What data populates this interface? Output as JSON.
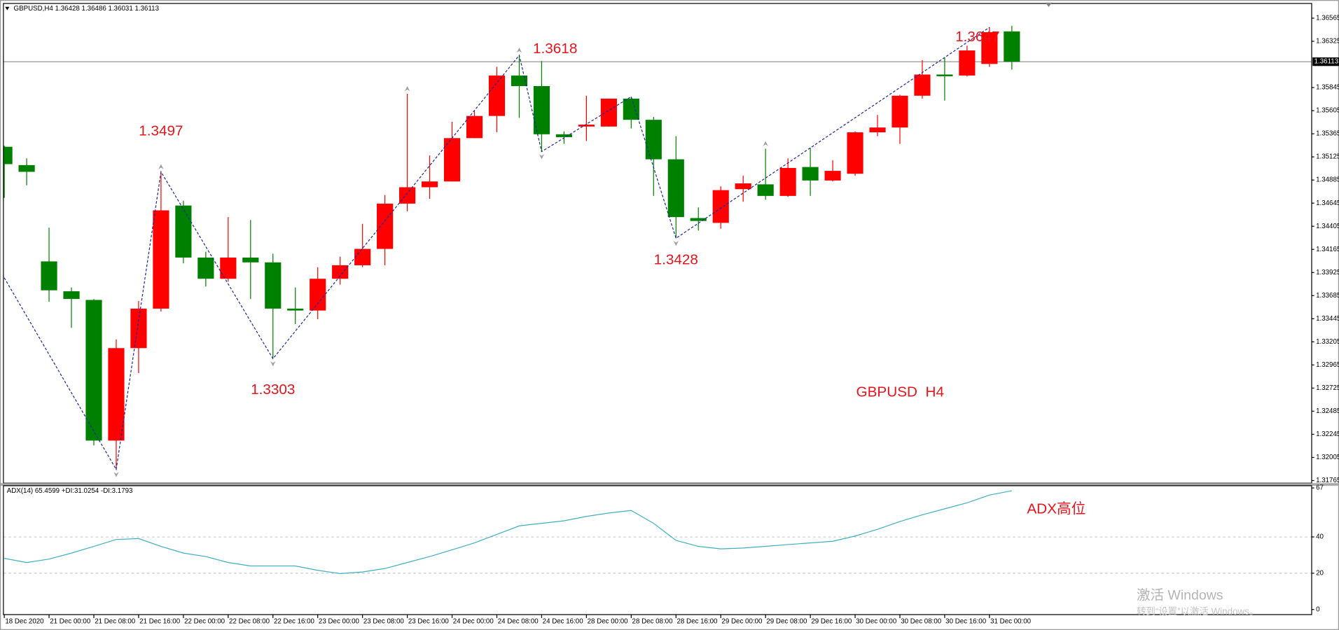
{
  "chart_data": [
    {
      "type": "candlestick",
      "symbol": "GBPUSD,H4",
      "categories": [
        "18 Dec 2020",
        null,
        "21 Dec 00:00",
        null,
        "21 Dec 08:00",
        null,
        "21 Dec 16:00",
        null,
        "22 Dec 00:00",
        null,
        "22 Dec 08:00",
        null,
        "22 Dec 16:00",
        null,
        "23 Dec 00:00",
        null,
        "23 Dec 08:00",
        null,
        "23 Dec 16:00",
        null,
        "24 Dec 00:00",
        null,
        "24 Dec 08:00",
        null,
        "24 Dec 16:00",
        null,
        "28 Dec 00:00",
        null,
        "28 Dec 08:00",
        null,
        "28 Dec 16:00",
        null,
        "29 Dec 00:00",
        null,
        "29 Dec 08:00",
        null,
        "29 Dec 16:00",
        null,
        "30 Dec 00:00",
        null,
        "30 Dec 08:00",
        null,
        "30 Dec 16:00",
        null,
        "31 Dec 00:00",
        null
      ],
      "open": [
        1.3523,
        1.3504,
        1.3404,
        1.3373,
        1.3364,
        1.3218,
        1.3314,
        1.3355,
        1.3462,
        1.3408,
        1.3386,
        1.3408,
        1.3403,
        1.3355,
        1.3353,
        1.3386,
        1.34,
        1.3417,
        1.3464,
        1.3481,
        1.3487,
        1.3532,
        1.3555,
        1.3597,
        1.3586,
        1.3536,
        1.3544,
        1.3544,
        1.3573,
        1.3551,
        1.351,
        1.3449,
        1.3444,
        1.3479,
        1.3484,
        1.3472,
        1.3502,
        1.3488,
        1.3495,
        1.3538,
        1.3543,
        1.3576,
        1.3598,
        1.3597,
        1.3609,
        1.36428
      ],
      "high": [
        1.3524,
        1.3511,
        1.3439,
        1.3377,
        1.3365,
        1.3323,
        1.3363,
        1.3497,
        1.3467,
        1.3414,
        1.345,
        1.3447,
        1.3412,
        1.3377,
        1.3398,
        1.3409,
        1.3443,
        1.3473,
        1.3578,
        1.3514,
        1.3549,
        1.356,
        1.3606,
        1.3618,
        1.3612,
        1.3539,
        1.3576,
        1.3573,
        1.3575,
        1.3554,
        1.3534,
        1.346,
        1.3482,
        1.3493,
        1.3521,
        1.3511,
        1.3522,
        1.3509,
        1.3539,
        1.3556,
        1.3577,
        1.3613,
        1.3616,
        1.3628,
        1.3647,
        1.36486
      ],
      "low": [
        1.347,
        1.3483,
        1.3362,
        1.3335,
        1.3213,
        1.3188,
        1.3288,
        1.3352,
        1.3402,
        1.3378,
        1.3383,
        1.3365,
        1.3303,
        1.3339,
        1.3344,
        1.338,
        1.3398,
        1.34,
        1.3456,
        1.3469,
        1.3487,
        1.3532,
        1.3538,
        1.3553,
        1.3518,
        1.3526,
        1.3529,
        1.3544,
        1.3542,
        1.3472,
        1.3428,
        1.3436,
        1.3438,
        1.3466,
        1.3468,
        1.3471,
        1.3472,
        1.3487,
        1.3493,
        1.3534,
        1.3526,
        1.3573,
        1.3571,
        1.3596,
        1.3606,
        1.36031
      ],
      "close": [
        1.3505,
        1.3497,
        1.3374,
        1.3365,
        1.3218,
        1.3314,
        1.3355,
        1.3457,
        1.3408,
        1.3386,
        1.3408,
        1.3403,
        1.3355,
        1.3353,
        1.3386,
        1.34,
        1.3417,
        1.3464,
        1.3481,
        1.3487,
        1.3532,
        1.3555,
        1.3597,
        1.3586,
        1.3536,
        1.3533,
        1.3546,
        1.3573,
        1.3551,
        1.351,
        1.345,
        1.3446,
        1.3478,
        1.3485,
        1.3472,
        1.3501,
        1.3488,
        1.3498,
        1.3538,
        1.3543,
        1.3576,
        1.3598,
        1.3597,
        1.3623,
        1.3642,
        1.36113
      ],
      "up_color": "#ff0000",
      "down_color": "#008000",
      "ylim": [
        1.31738,
        1.36718
      ],
      "yticks": [
        1.31765,
        1.32005,
        1.32245,
        1.32485,
        1.32725,
        1.32965,
        1.33205,
        1.33445,
        1.33685,
        1.33925,
        1.34165,
        1.34405,
        1.34645,
        1.34885,
        1.35125,
        1.35365,
        1.35605,
        1.35845,
        1.36325,
        1.36565
      ],
      "zigzag": {
        "x": [
          0,
          5,
          7,
          12,
          23,
          24,
          28,
          30,
          44
        ],
        "values": [
          1.3387,
          1.3188,
          1.3497,
          1.3303,
          1.3618,
          1.3518,
          1.3575,
          1.3428,
          1.3647
        ],
        "color": "#1e2c9c"
      },
      "fractals_up": [
        7,
        18,
        23,
        34
      ],
      "fractals_down": [
        5,
        12,
        24,
        30
      ],
      "annotation": "GBPUSD  H4"
    },
    {
      "type": "line",
      "title": "ADX(14)",
      "di_plus": "+DI:31.0254",
      "di_minus": "-DI:3.1793",
      "values": [
        28.2,
        25.9,
        27.8,
        31.1,
        34.8,
        38.6,
        39.1,
        34.8,
        31.1,
        29.2,
        25.9,
        24.0,
        24.0,
        24.0,
        21.6,
        19.8,
        20.7,
        22.6,
        25.9,
        29.2,
        32.9,
        36.7,
        41.4,
        46.1,
        47.5,
        48.9,
        51.3,
        53.2,
        54.6,
        47.5,
        38.1,
        34.8,
        33.4,
        33.9,
        34.8,
        35.8,
        36.7,
        37.6,
        40.5,
        44.2,
        48.5,
        52.2,
        55.5,
        58.8,
        63.1,
        65.4599
      ],
      "color": "#3fb0c0",
      "ylim": [
        -2.8,
        68.7
      ],
      "yticks": [
        0,
        20,
        40,
        67
      ],
      "grid": true,
      "annotation": "ADX高位"
    }
  ],
  "watermark": {
    "title": "激活 Windows",
    "subtitle": "转到“设置”以激活 Windows。"
  }
}
